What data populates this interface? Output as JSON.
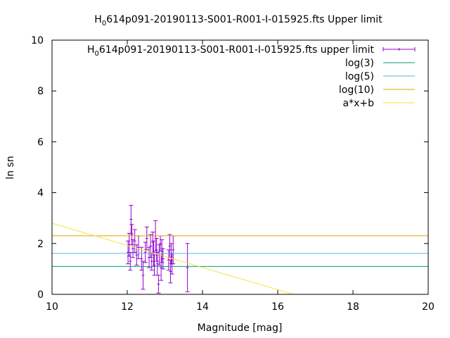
{
  "chart_data": {
    "type": "scatter",
    "title": "H_0614p091-20190113-S001-R001-I-015925.fts Upper limit",
    "title_main": "H",
    "title_sub": "0",
    "title_rest": "614p091-20190113-S001-R001-I-015925.fts Upper limit",
    "xlabel": "Magnitude [mag]",
    "ylabel": "ln sn",
    "xlim": [
      10,
      20
    ],
    "ylim": [
      0,
      10
    ],
    "xticks": [
      10,
      12,
      14,
      16,
      18,
      20
    ],
    "yticks": [
      0,
      2,
      4,
      6,
      8,
      10
    ],
    "grid": false,
    "legend_position": "top-right",
    "series": [
      {
        "name": "H_0614p091-20190113-S001-R001-I-015925.fts upper limit",
        "legend_main": "H",
        "legend_sub": "0",
        "legend_rest": "614p091-20190113-S001-R001-I-015925.fts upper limit",
        "kind": "errorbars",
        "color": "#9400d3",
        "points": [
          {
            "x": 12.02,
            "y": 1.65,
            "err": 0.45
          },
          {
            "x": 12.05,
            "y": 1.95,
            "err": 0.45
          },
          {
            "x": 12.08,
            "y": 1.3,
            "err": 0.35
          },
          {
            "x": 12.1,
            "y": 2.95,
            "err": 0.55
          },
          {
            "x": 12.12,
            "y": 2.35,
            "err": 0.4
          },
          {
            "x": 12.15,
            "y": 1.8,
            "err": 0.35
          },
          {
            "x": 12.2,
            "y": 2.1,
            "err": 0.45
          },
          {
            "x": 12.25,
            "y": 1.55,
            "err": 0.4
          },
          {
            "x": 12.3,
            "y": 1.85,
            "err": 0.45
          },
          {
            "x": 12.38,
            "y": 1.4,
            "err": 0.45
          },
          {
            "x": 12.42,
            "y": 0.75,
            "err": 0.55
          },
          {
            "x": 12.48,
            "y": 1.65,
            "err": 0.4
          },
          {
            "x": 12.52,
            "y": 2.2,
            "err": 0.45
          },
          {
            "x": 12.58,
            "y": 1.45,
            "err": 0.4
          },
          {
            "x": 12.62,
            "y": 1.9,
            "err": 0.45
          },
          {
            "x": 12.65,
            "y": 1.3,
            "err": 0.35
          },
          {
            "x": 12.68,
            "y": 2.05,
            "err": 0.4
          },
          {
            "x": 12.7,
            "y": 1.6,
            "err": 0.5
          },
          {
            "x": 12.72,
            "y": 1.15,
            "err": 0.4
          },
          {
            "x": 12.75,
            "y": 2.3,
            "err": 0.6
          },
          {
            "x": 12.78,
            "y": 1.75,
            "err": 0.45
          },
          {
            "x": 12.8,
            "y": 1.2,
            "err": 0.45
          },
          {
            "x": 12.83,
            "y": 0.4,
            "err": 0.35
          },
          {
            "x": 12.85,
            "y": 1.55,
            "err": 0.4
          },
          {
            "x": 12.88,
            "y": 2.0,
            "err": 0.3
          },
          {
            "x": 12.9,
            "y": 1.05,
            "err": 0.5
          },
          {
            "x": 12.92,
            "y": 1.7,
            "err": 0.45
          },
          {
            "x": 12.95,
            "y": 1.4,
            "err": 0.4
          },
          {
            "x": 13.1,
            "y": 1.35,
            "err": 0.4
          },
          {
            "x": 13.13,
            "y": 1.9,
            "err": 0.45
          },
          {
            "x": 13.15,
            "y": 0.9,
            "err": 0.45
          },
          {
            "x": 13.17,
            "y": 1.6,
            "err": 0.4
          },
          {
            "x": 13.19,
            "y": 1.2,
            "err": 0.4
          },
          {
            "x": 13.22,
            "y": 1.75,
            "err": 0.55
          },
          {
            "x": 13.6,
            "y": 1.05,
            "err": 0.95
          }
        ]
      },
      {
        "name": "log(3)",
        "kind": "hline",
        "color": "#009e73",
        "y": 1.0986
      },
      {
        "name": "log(5)",
        "kind": "hline",
        "color": "#56b4e9",
        "y": 1.6094
      },
      {
        "name": "log(10)",
        "kind": "hline",
        "color": "#e69f00",
        "y": 2.3026
      },
      {
        "name": "a*x+b",
        "kind": "fit",
        "color": "#f0e442",
        "a": -0.436,
        "b": 7.16
      }
    ]
  }
}
